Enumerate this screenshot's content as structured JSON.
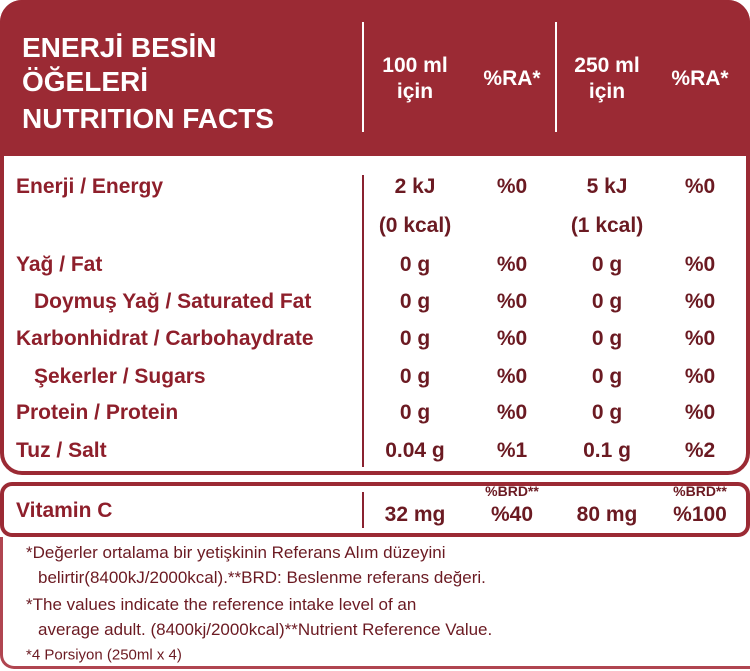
{
  "header": {
    "title": [
      "ENERJİ BESİN",
      "ÖĞELERİ",
      "NUTRITION FACTS"
    ],
    "columns": [
      [
        "100 ml",
        "için"
      ],
      [
        "%RA*"
      ],
      [
        "250 ml",
        "için"
      ],
      [
        "%RA*"
      ]
    ]
  },
  "rows": [
    {
      "label": "Enerji / Energy",
      "values": [
        "2 kJ",
        "%0",
        "5 kJ",
        "%0"
      ],
      "sub": [
        "(0 kcal)",
        "(1 kcal)"
      ]
    },
    {
      "label": "Yağ / Fat",
      "values": [
        "0 g",
        "%0",
        "0 g",
        "%0"
      ]
    },
    {
      "label": "Doymuş Yağ / Saturated Fat",
      "indent": true,
      "values": [
        "0 g",
        "%0",
        "0 g",
        "%0"
      ]
    },
    {
      "label": "Karbonhidrat / Carbohaydrate",
      "values": [
        "0 g",
        "%0",
        "0 g",
        "%0"
      ]
    },
    {
      "label": "Şekerler / Sugars",
      "indent": true,
      "values": [
        "0 g",
        "%0",
        "0 g",
        "%0"
      ]
    },
    {
      "label": "Protein / Protein",
      "values": [
        "0 g",
        "%0",
        "0 g",
        "%0"
      ]
    },
    {
      "label": "Tuz / Salt",
      "values": [
        "0.04 g",
        "%1",
        "0.1 g",
        "%2"
      ]
    }
  ],
  "vitamin": {
    "label": "Vitamin C",
    "values": [
      "32 mg",
      "%40",
      "80 mg",
      "%100"
    ],
    "notes": [
      "%BRD**",
      "%BRD**"
    ]
  },
  "footnotes": [
    [
      "*Değerler ortalama bir yetişkinin Referans Alım düzeyini",
      "belirtir(8400kJ/2000kcal).**BRD: Beslenme referans değeri."
    ],
    [
      "*The values indicate the reference intake level of an",
      "average adult. (8400kj/2000kcal)**Nutrient Reference Value."
    ],
    [
      "*4 Porsiyon (250ml x 4)"
    ]
  ]
}
